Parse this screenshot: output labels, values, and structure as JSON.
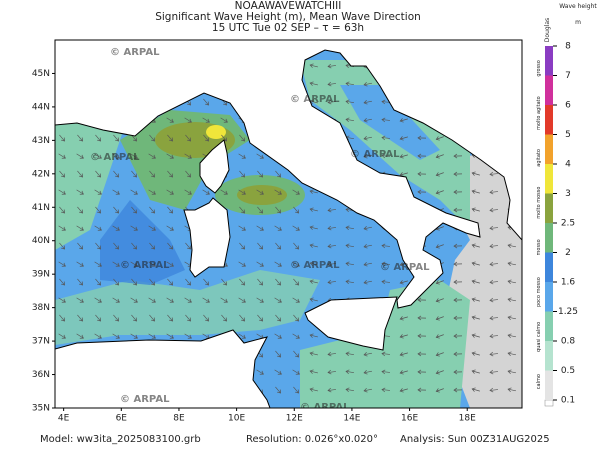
{
  "header": {
    "source": "NOAAWAVEWATCHIII",
    "title": "Significant Wave Height (m), Mean Wave Direction",
    "time": "15 UTC Tue 02 SEP  –  τ = 63h"
  },
  "map": {
    "lonlim": [
      3.7,
      19.9
    ],
    "latlim": [
      35,
      46
    ],
    "lat_ticks": [
      {
        "value": 35,
        "label": "35N"
      },
      {
        "value": 36,
        "label": "36N"
      },
      {
        "value": 37,
        "label": "37N"
      },
      {
        "value": 38,
        "label": "38N"
      },
      {
        "value": 39,
        "label": "39N"
      },
      {
        "value": 40,
        "label": "40N"
      },
      {
        "value": 41,
        "label": "41N"
      },
      {
        "value": 42,
        "label": "42N"
      },
      {
        "value": 43,
        "label": "43N"
      },
      {
        "value": 44,
        "label": "44N"
      },
      {
        "value": 45,
        "label": "45N"
      }
    ],
    "lon_ticks": [
      {
        "value": 4,
        "label": "4E"
      },
      {
        "value": 6,
        "label": "6E"
      },
      {
        "value": 8,
        "label": "8E"
      },
      {
        "value": 10,
        "label": "10E"
      },
      {
        "value": 12,
        "label": "12E"
      },
      {
        "value": 14,
        "label": "14E"
      },
      {
        "value": 16,
        "label": "16E"
      },
      {
        "value": 18,
        "label": "18E"
      }
    ],
    "watermark": "© ARPAL"
  },
  "colorbar": {
    "title": "Wave height",
    "unit": "m",
    "scale_name": "Douglas",
    "levels": [
      0.1,
      0.5,
      0.8,
      1.25,
      1.6,
      2,
      2.5,
      3,
      4,
      5,
      6,
      7,
      8
    ],
    "colors": [
      "#e4e4e4",
      "#b5e3cf",
      "#86cfb0",
      "#5aa7ea",
      "#3d86dc",
      "#6fb77a",
      "#8aa33e",
      "#f0e63a",
      "#f2a22c",
      "#e23a2a",
      "#d0309c",
      "#8a3cc2"
    ],
    "sea_states": [
      "calmo",
      "quasi calmo",
      "poco mosso",
      "mosso",
      "molto mosso",
      "agitato",
      "molto agitato",
      "grosso"
    ]
  },
  "footer": {
    "model": "Model:  ww3ita_2025083100.grb",
    "resolution": "Resolution: 0.026°x0.020°",
    "analysis": "Analysis: Sun 00Z31AUG2025"
  }
}
